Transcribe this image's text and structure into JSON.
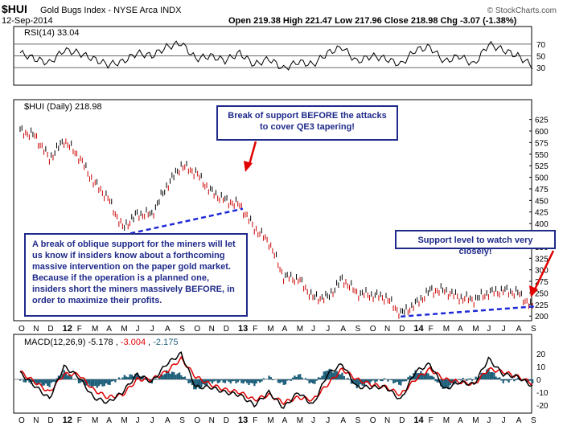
{
  "header": {
    "symbol": "$HUI",
    "name": "Gold Bugs Index - NYSE Arca INDX",
    "date": "12-Sep-2014",
    "ohlc": "Open 219.38  High 221.47  Low 217.96  Close 218.98  Chg -3.07 (-1.38%)",
    "watermark": "© StockCharts.com"
  },
  "rsi_panel": {
    "label": "RSI(14) 33.04",
    "ticks": [
      "70",
      "50",
      "30"
    ],
    "colors": {
      "line": "#000000",
      "overbought_fill": "#2e7d32",
      "oversold_fill": "#2e7d32"
    }
  },
  "price_panel": {
    "label": "$HUI (Daily) 218.98",
    "yticks": [
      "625",
      "600",
      "575",
      "550",
      "525",
      "500",
      "475",
      "450",
      "425",
      "400",
      "375",
      "350",
      "325",
      "300",
      "275",
      "250",
      "225",
      "200"
    ],
    "colors": {
      "up": "#000000",
      "down": "#cc0000",
      "support": "#1f2ad8",
      "annotation": "#1f2a8a",
      "arrow": "#e00000"
    }
  },
  "xaxis": {
    "labels": [
      "O",
      "N",
      "D",
      "12",
      "F",
      "M",
      "A",
      "M",
      "J",
      "J",
      "A",
      "S",
      "O",
      "N",
      "D",
      "13",
      "F",
      "M",
      "A",
      "M",
      "J",
      "J",
      "A",
      "S",
      "O",
      "N",
      "D",
      "14",
      "F",
      "M",
      "A",
      "M",
      "J",
      "J",
      "A",
      "S"
    ]
  },
  "macd_panel": {
    "label_prefix": "MACD(12,26,9)",
    "macd": "-5.178",
    "signal": "-3.004",
    "hist": "-2.175",
    "yticks": [
      "20",
      "10",
      "0",
      "-10",
      "-20"
    ],
    "colors": {
      "macd": "#000000",
      "signal": "#e00000",
      "hist": "#1d5f7a"
    }
  },
  "annotations": {
    "box1": [
      "Break of support BEFORE the attacks",
      "to cover QE3 tapering!"
    ],
    "box2": "A break of oblique support for the miners will let us know if insiders know about a forthcoming massive intervention on the paper gold market. Because if the operation is a planned one, insiders short the miners massively BEFORE, in order to maximize their profits.",
    "box3": "Support level to watch very closely!"
  },
  "chart_data": [
    {
      "type": "line",
      "name": "RSI(14)",
      "x": [
        "2011-10",
        "2011-11",
        "2011-12",
        "2012-01",
        "2012-02",
        "2012-03",
        "2012-04",
        "2012-05",
        "2012-06",
        "2012-07",
        "2012-08",
        "2012-09",
        "2012-10",
        "2012-11",
        "2012-12",
        "2013-01",
        "2013-02",
        "2013-03",
        "2013-04",
        "2013-05",
        "2013-06",
        "2013-07",
        "2013-08",
        "2013-09",
        "2013-10",
        "2013-11",
        "2013-12",
        "2014-01",
        "2014-02",
        "2014-03",
        "2014-04",
        "2014-05",
        "2014-06",
        "2014-07",
        "2014-08",
        "2014-09"
      ],
      "values": [
        55,
        45,
        38,
        60,
        55,
        45,
        35,
        40,
        55,
        50,
        65,
        72,
        45,
        50,
        42,
        55,
        35,
        45,
        28,
        40,
        35,
        55,
        65,
        40,
        50,
        45,
        35,
        60,
        65,
        40,
        50,
        35,
        70,
        60,
        50,
        33
      ],
      "ylim": [
        0,
        100
      ],
      "reference_lines": [
        30,
        50,
        70
      ]
    },
    {
      "type": "line",
      "name": "$HUI (Daily)",
      "x": [
        "2011-10",
        "2011-11",
        "2011-12",
        "2012-01",
        "2012-02",
        "2012-03",
        "2012-04",
        "2012-05",
        "2012-06",
        "2012-07",
        "2012-08",
        "2012-09",
        "2012-10",
        "2012-11",
        "2012-12",
        "2013-01",
        "2013-02",
        "2013-03",
        "2013-04",
        "2013-05",
        "2013-06",
        "2013-07",
        "2013-08",
        "2013-09",
        "2013-10",
        "2013-11",
        "2013-12",
        "2014-01",
        "2014-02",
        "2014-03",
        "2014-04",
        "2014-05",
        "2014-06",
        "2014-07",
        "2014-08",
        "2014-09"
      ],
      "values": [
        600,
        590,
        540,
        580,
        545,
        490,
        455,
        390,
        420,
        420,
        480,
        525,
        510,
        470,
        450,
        440,
        390,
        360,
        285,
        280,
        240,
        240,
        280,
        250,
        245,
        240,
        205,
        225,
        255,
        255,
        240,
        235,
        250,
        255,
        250,
        219
      ],
      "ylim": [
        190,
        640
      ],
      "support_lines": [
        {
          "from": {
            "x": "2012-05",
            "y": 375
          },
          "to": {
            "x": "2013-01",
            "y": 432
          }
        },
        {
          "from": {
            "x": "2013-12",
            "y": 199
          },
          "to": {
            "x": "2014-09",
            "y": 221
          }
        }
      ]
    },
    {
      "type": "line",
      "name": "MACD(12,26,9)",
      "x": [
        "2011-10",
        "2011-11",
        "2011-12",
        "2012-01",
        "2012-02",
        "2012-03",
        "2012-04",
        "2012-05",
        "2012-06",
        "2012-07",
        "2012-08",
        "2012-09",
        "2012-10",
        "2012-11",
        "2012-12",
        "2013-01",
        "2013-02",
        "2013-03",
        "2013-04",
        "2013-05",
        "2013-06",
        "2013-07",
        "2013-08",
        "2013-09",
        "2013-10",
        "2013-11",
        "2013-12",
        "2014-01",
        "2014-02",
        "2014-03",
        "2014-04",
        "2014-05",
        "2014-06",
        "2014-07",
        "2014-08",
        "2014-09"
      ],
      "series": [
        {
          "name": "MACD",
          "values": [
            5,
            -5,
            -15,
            10,
            2,
            -14,
            -18,
            -10,
            4,
            -2,
            12,
            20,
            -6,
            -6,
            -10,
            -12,
            -20,
            -10,
            -22,
            -10,
            -20,
            4,
            12,
            -6,
            -6,
            -6,
            -16,
            6,
            12,
            -8,
            -2,
            -4,
            16,
            4,
            2,
            -5.178
          ]
        },
        {
          "name": "Signal",
          "values": [
            6,
            -2,
            -10,
            4,
            4,
            -8,
            -14,
            -12,
            0,
            0,
            6,
            16,
            2,
            -4,
            -8,
            -10,
            -16,
            -12,
            -18,
            -14,
            -16,
            -4,
            8,
            0,
            -4,
            -6,
            -12,
            0,
            8,
            0,
            -2,
            -4,
            8,
            6,
            2,
            -3.004
          ]
        },
        {
          "name": "Histogram",
          "values": [
            -1,
            -3,
            -5,
            6,
            -2,
            -6,
            -4,
            2,
            4,
            -2,
            6,
            4,
            -8,
            -2,
            -2,
            -2,
            -4,
            2,
            -4,
            4,
            -4,
            8,
            4,
            -6,
            -2,
            0,
            -4,
            6,
            4,
            -8,
            0,
            0,
            8,
            -2,
            0,
            -2.175
          ]
        }
      ],
      "ylim": [
        -25,
        25
      ]
    }
  ]
}
